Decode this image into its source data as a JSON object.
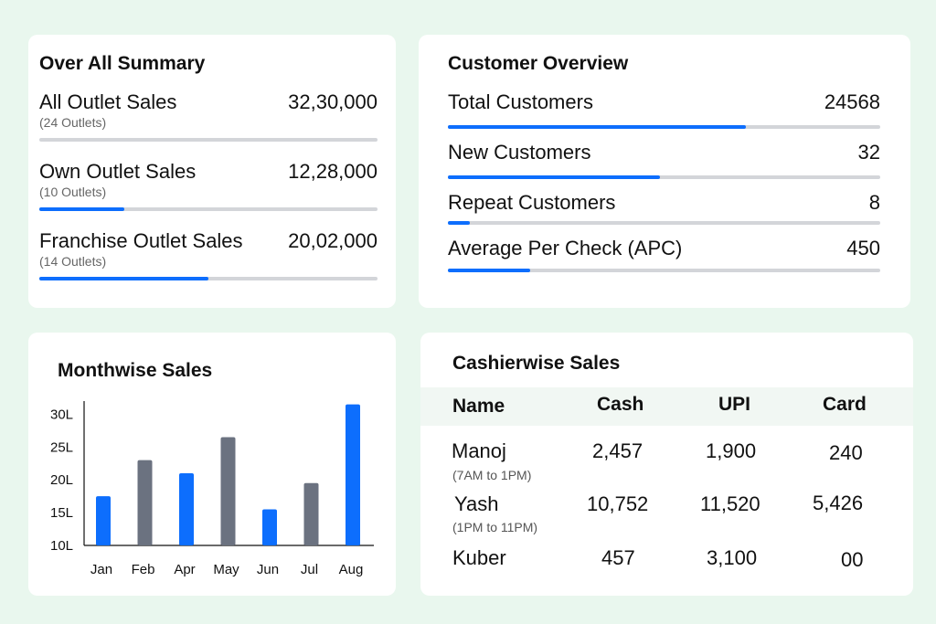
{
  "summary": {
    "title": "Over All Summary",
    "rows": [
      {
        "label": "All Outlet Sales",
        "value": "32,30,000",
        "sub": "(24 Outlets)",
        "progress": 0
      },
      {
        "label": "Own Outlet Sales",
        "value": "12,28,000",
        "sub": "(10 Outlets)",
        "progress": 0.25
      },
      {
        "label": "Franchise Outlet Sales",
        "value": "20,02,000",
        "sub": "(14 Outlets)",
        "progress": 0.5
      }
    ]
  },
  "customers": {
    "title": "Customer Overview",
    "rows": [
      {
        "label": "Total Customers",
        "value": "24568",
        "progress": 0.69
      },
      {
        "label": "New Customers",
        "value": "32",
        "progress": 0.49
      },
      {
        "label": "Repeat Customers",
        "value": "8",
        "progress": 0.05
      },
      {
        "label": "Average Per Check (APC)",
        "value": "450",
        "progress": 0.19
      }
    ]
  },
  "monthwise": {
    "title": "Monthwise Sales"
  },
  "chart_data": {
    "type": "bar",
    "title": "Monthwise Sales",
    "categories": [
      "Jan",
      "Feb",
      "Apr",
      "May",
      "Jun",
      "Jul",
      "Aug"
    ],
    "values": [
      17.5,
      23,
      21,
      26.5,
      15.5,
      19.5,
      31.5
    ],
    "colors": [
      "#0d6efd",
      "#6b7280",
      "#0d6efd",
      "#6b7280",
      "#0d6efd",
      "#6b7280",
      "#0d6efd"
    ],
    "y_ticks": [
      "10L",
      "15L",
      "20L",
      "25L",
      "30L"
    ],
    "y_tick_values": [
      10,
      15,
      20,
      25,
      30
    ],
    "ylim": [
      10,
      32
    ],
    "grid": false,
    "xlabel": "",
    "ylabel": ""
  },
  "cashier": {
    "title": "Cashierwise Sales",
    "columns": [
      "Name",
      "Cash",
      "UPI",
      "Card"
    ],
    "rows": [
      {
        "name": "Manoj",
        "shift": "(7AM to 1PM)",
        "cash": "2,457",
        "upi": "1,900",
        "card": "240"
      },
      {
        "name": "Yash",
        "shift": "(1PM to 11PM)",
        "cash": "10,752",
        "upi": "11,520",
        "card": "5,426"
      },
      {
        "name": "Kuber",
        "shift": "",
        "cash": "457",
        "upi": "3,100",
        "card": "00"
      }
    ]
  },
  "colors": {
    "background": "#e9f7ee",
    "accent": "#0d6efd",
    "bar_secondary": "#6b7280",
    "track": "#d3d5d9"
  }
}
